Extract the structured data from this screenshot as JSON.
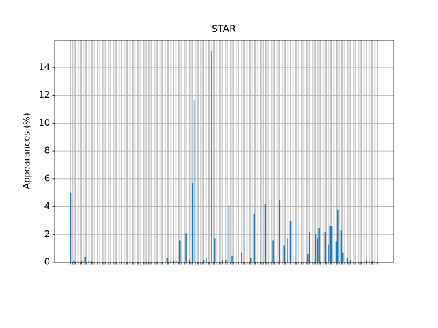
{
  "chart_data": {
    "type": "bar",
    "title": "STAR",
    "ylabel": "Appearances (%)",
    "categories": [
      null,
      null,
      null,
      null,
      null,
      null,
      null,
      null,
      null,
      null,
      null,
      null,
      null,
      null,
      null,
      null,
      null,
      null,
      null,
      null,
      null,
      null,
      null,
      null,
      null,
      null,
      null,
      null,
      null,
      null,
      null,
      null,
      null,
      null,
      null,
      null,
      null,
      null,
      null,
      null,
      null,
      null,
      null,
      null,
      null,
      null,
      null,
      null,
      null,
      null,
      null,
      null,
      null,
      null,
      null,
      null,
      null,
      null,
      null,
      null,
      null,
      null,
      null,
      null,
      null,
      null,
      null,
      null,
      null,
      null,
      null,
      null,
      null,
      null,
      null,
      null,
      null,
      null,
      null,
      null,
      null,
      null,
      null,
      null,
      null,
      null,
      null,
      null,
      null,
      null,
      null,
      null,
      null,
      null,
      null,
      null,
      null,
      null,
      null,
      null,
      null,
      null,
      null,
      null,
      null,
      null,
      null,
      null,
      null,
      null,
      null,
      null,
      null,
      null,
      null,
      null,
      null,
      null,
      null,
      null,
      null,
      null,
      null,
      null,
      null,
      null,
      null,
      null,
      null,
      null,
      null,
      null,
      null,
      null,
      null,
      null,
      null,
      null,
      null,
      null,
      null,
      null,
      null,
      null,
      null,
      null,
      null,
      null,
      null,
      null,
      null,
      null,
      null,
      null,
      null,
      null,
      null,
      null,
      null,
      null,
      null,
      null,
      null,
      null,
      null,
      null,
      null,
      null,
      null,
      null,
      null,
      null,
      null,
      null,
      null,
      null,
      null,
      null,
      null,
      null,
      null,
      null,
      null,
      null,
      null,
      null,
      null,
      null,
      null,
      null,
      null,
      null,
      null,
      null,
      null
    ],
    "values": [
      5.0,
      0,
      0.1,
      0,
      0.1,
      0,
      0,
      0.1,
      0,
      0.4,
      0,
      0.1,
      0,
      0.1,
      0,
      0,
      0,
      0,
      0,
      0,
      0,
      0,
      0,
      0,
      0,
      0,
      0,
      0,
      0,
      0,
      0,
      0,
      0,
      0,
      0,
      0,
      0,
      0,
      0,
      0,
      0,
      0,
      0,
      0,
      0,
      0,
      0,
      0,
      0,
      0,
      0,
      0,
      0,
      0,
      0,
      0,
      0,
      0,
      0,
      0,
      0,
      0.3,
      0,
      0.1,
      0,
      0.1,
      0,
      0.1,
      0,
      1.6,
      0,
      0,
      0,
      2.1,
      0,
      0.2,
      0,
      5.7,
      11.7,
      0,
      0,
      0,
      0,
      0,
      0.2,
      0,
      0.3,
      0,
      0,
      15.2,
      0,
      1.7,
      0,
      0,
      0,
      0,
      0.2,
      0,
      0.2,
      0,
      4.1,
      0,
      0.5,
      0,
      0,
      0,
      0,
      0,
      0.7,
      0,
      0,
      0,
      0,
      0,
      0.3,
      0,
      3.5,
      0,
      0,
      0,
      0,
      0,
      0,
      4.2,
      0,
      0,
      0,
      0,
      1.6,
      0,
      0,
      0,
      4.5,
      0,
      0,
      1.2,
      0,
      1.7,
      0,
      3.0,
      0,
      0,
      0,
      0,
      0,
      0,
      0,
      0,
      0,
      0,
      0.6,
      2.2,
      0,
      0,
      0,
      2.0,
      1.7,
      2.5,
      0,
      0,
      0,
      2.2,
      0,
      1.3,
      2.6,
      2.6,
      0,
      0,
      1.5,
      3.8,
      0,
      2.3,
      0.7,
      0,
      0,
      0.3,
      0,
      0.2,
      0,
      0,
      0,
      0,
      0,
      0,
      0,
      0,
      0,
      0.1,
      0,
      0.1,
      0,
      0.1,
      0,
      0,
      0
    ],
    "color": "#1f77b4",
    "ylim": [
      0,
      15.96
    ],
    "yticks": [
      0,
      2,
      4,
      6,
      8,
      10,
      12,
      14
    ],
    "grid": true
  }
}
